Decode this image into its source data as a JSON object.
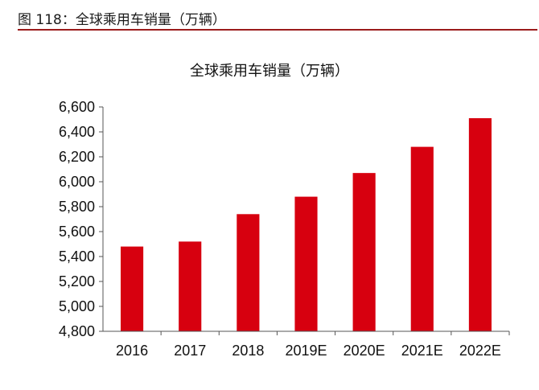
{
  "figure": {
    "caption": "图 118：全球乘用车销量（万辆）"
  },
  "colors": {
    "bar": "#d7000f",
    "axis": "#555555",
    "rule": "#9b1b1b"
  },
  "chart_data": {
    "type": "bar",
    "title": "全球乘用车销量（万辆）",
    "xlabel": "",
    "ylabel": "",
    "categories": [
      "2016",
      "2017",
      "2018",
      "2019E",
      "2020E",
      "2021E",
      "2022E"
    ],
    "values": [
      5480,
      5520,
      5740,
      5880,
      6070,
      6280,
      6510
    ],
    "ylim": [
      4800,
      6600
    ],
    "yticks": [
      4800,
      5000,
      5200,
      5400,
      5600,
      5800,
      6000,
      6200,
      6400,
      6600
    ],
    "ytick_labels": [
      "4,800",
      "5,000",
      "5,200",
      "5,400",
      "5,600",
      "5,800",
      "6,000",
      "6,200",
      "6,400",
      "6,600"
    ],
    "grid": false,
    "legend": "none"
  }
}
